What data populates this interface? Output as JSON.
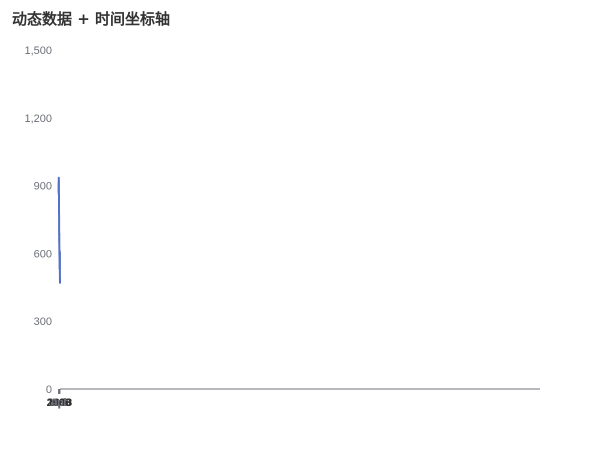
{
  "chart_data": {
    "type": "line",
    "title": "动态数据 + 时间坐标轴",
    "xlabel": "",
    "ylabel": "",
    "ylim": [
      0,
      1500
    ],
    "xlim": [
      "1997-09-01",
      "1000-07-01"
    ],
    "y_ticks": [
      "0",
      "300",
      "600",
      "900",
      "1,200",
      "1,500"
    ],
    "x_ticks": [
      {
        "date": "1998-01-01",
        "label": "1998",
        "year": true
      },
      {
        "date": "1998-04-01",
        "label": "Apr",
        "year": false
      },
      {
        "date": "1998-07-01",
        "label": "Jul",
        "year": false
      },
      {
        "date": "1998-10-01",
        "label": "Oct",
        "year": false
      },
      {
        "date": "1999-01-01",
        "label": "1999",
        "year": true
      },
      {
        "date": "1999-04-01",
        "label": "Apr",
        "year": false
      },
      {
        "date": "1999-07-01",
        "label": "Jul",
        "year": false
      },
      {
        "date": "1999-10-01",
        "label": "Oct",
        "year": false
      },
      {
        "date": "2000-01-01",
        "label": "2000",
        "year": true
      },
      {
        "date": "2000-04-01",
        "label": "Apr",
        "year": false
      },
      {
        "date": "2000-07-01",
        "label": "Jul",
        "year": false
      }
    ],
    "grid": false,
    "line_color": "#5470c6",
    "series": [
      {
        "x": [
          "1997-09-01",
          "1997-09-15",
          "1997-10-01",
          "1997-10-15",
          "1997-11-01",
          "1997-11-15",
          "1997-12-01",
          "1997-12-15",
          "1998-01-01",
          "1998-01-15",
          "1998-02-01",
          "1998-02-15",
          "1998-03-01",
          "1998-03-15",
          "1998-04-01",
          "1998-04-15",
          "1998-05-01",
          "1998-05-15",
          "1998-06-01",
          "1998-06-15",
          "1998-07-01",
          "1998-07-15",
          "1998-08-01",
          "1998-08-15",
          "1998-09-01",
          "1998-09-15",
          "1998-10-01",
          "1998-10-15",
          "1998-11-01",
          "1998-11-15",
          "1998-12-01",
          "1998-12-15",
          "1999-01-01",
          "1999-01-15",
          "1999-02-01",
          "1999-02-15",
          "1999-03-01",
          "1999-03-15",
          "1999-04-01",
          "1999-04-15",
          "1999-05-01",
          "1999-05-15",
          "1999-06-01",
          "1999-06-15",
          "1999-07-01",
          "1999-07-15",
          "1999-08-01",
          "1999-08-15",
          "1999-09-01",
          "1999-09-15",
          "1999-10-01",
          "1999-10-15",
          "1999-11-01",
          "1999-11-15",
          "1999-12-01",
          "1999-12-15",
          "2000-01-01",
          "2000-01-15",
          "2000-02-01",
          "2000-02-15",
          "2000-03-01",
          "2000-03-15",
          "2000-04-01",
          "2000-04-15",
          "2000-05-01",
          "2000-05-15",
          "2000-06-01",
          "2000-06-15",
          "2000-07-01",
          "2000-07-10"
        ],
        "values": [
          490,
          480,
          470,
          500,
          540,
          570,
          605,
          600,
          585,
          600,
          575,
          560,
          555,
          580,
          600,
          610,
          590,
          560,
          530,
          535,
          540,
          560,
          585,
          570,
          580,
          590,
          600,
          590,
          595,
          600,
          620,
          610,
          610,
          640,
          690,
          660,
          660,
          670,
          680,
          670,
          660,
          650,
          680,
          690,
          710,
          740,
          760,
          770,
          780,
          800,
          820,
          840,
          855,
          870,
          880,
          895,
          905,
          920,
          935,
          925,
          900,
          860,
          890,
          905,
          915,
          920,
          910,
          905,
          870,
          910
        ]
      }
    ]
  }
}
